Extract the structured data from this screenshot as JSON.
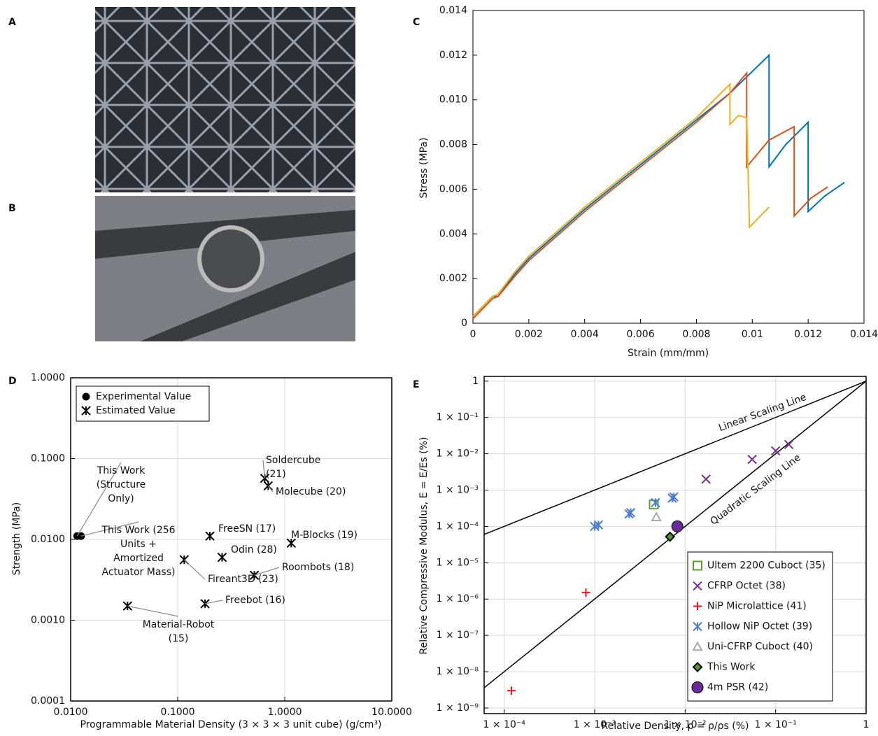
{
  "photos": [
    {
      "label": "A"
    },
    {
      "label": "B"
    }
  ],
  "chart_data": [
    {
      "type": "line",
      "label": "C",
      "xlabel": "Strain (mm/mm)",
      "ylabel": "Stress (MPa)",
      "xlim": [
        0,
        0.014
      ],
      "ylim": [
        0,
        0.014
      ],
      "xticks": [
        0,
        0.002,
        0.004,
        0.006,
        0.008,
        0.01,
        0.012,
        0.014
      ],
      "yticks": [
        0,
        0.002,
        0.004,
        0.006,
        0.008,
        {
          "value": 0.01,
          "label": "0.010"
        },
        0.012,
        0.014
      ],
      "grid": false,
      "series": [
        {
          "color": "#0072bd",
          "x": [
            0,
            0.0007,
            0.0009,
            0.0015,
            0.002,
            0.004,
            0.006,
            0.008,
            0.0092,
            0.0106,
            0.0106,
            0.0112,
            0.012,
            0.012,
            0.0126,
            0.0133
          ],
          "values": [
            0.0003,
            0.0012,
            0.0012,
            0.0022,
            0.0029,
            0.0051,
            0.0071,
            0.0091,
            0.0103,
            0.012,
            0.007,
            0.008,
            0.009,
            0.005,
            0.0057,
            0.0063
          ]
        },
        {
          "color": "#d95319",
          "x": [
            0,
            0.0007,
            0.0009,
            0.0015,
            0.002,
            0.004,
            0.006,
            0.008,
            0.0092,
            0.0098,
            0.0098,
            0.0106,
            0.0115,
            0.0115,
            0.0121,
            0.0127
          ],
          "values": [
            0.0002,
            0.0011,
            0.0012,
            0.0021,
            0.0028,
            0.005,
            0.007,
            0.009,
            0.0103,
            0.0112,
            0.007,
            0.0082,
            0.0088,
            0.0048,
            0.0056,
            0.0061
          ]
        },
        {
          "color": "#edb120",
          "x": [
            0,
            0.0007,
            0.0009,
            0.0015,
            0.002,
            0.004,
            0.006,
            0.008,
            0.0092,
            0.0092,
            0.0095,
            0.0098,
            0.0099,
            0.0106
          ],
          "values": [
            0.0003,
            0.0012,
            0.0013,
            0.0023,
            0.003,
            0.0052,
            0.0072,
            0.0092,
            0.0107,
            0.0089,
            0.0093,
            0.0092,
            0.0043,
            0.0052
          ]
        }
      ]
    },
    {
      "type": "scatter",
      "label": "D",
      "xlabel": "Programmable Material Density (3 × 3 × 3 unit cube) (g/cm³)",
      "ylabel": "Strength (MPa)",
      "xscale": "log",
      "yscale": "log",
      "xlim": [
        0.01,
        10
      ],
      "ylim": [
        0.0001,
        1
      ],
      "xticks": [
        {
          "value": 0.01,
          "label": "0.0100"
        },
        {
          "value": 0.1,
          "label": "0.1000"
        },
        {
          "value": 1,
          "label": "1.0000"
        },
        {
          "value": 10,
          "label": "10.0000"
        }
      ],
      "yticks": [
        0.0001,
        {
          "value": 0.001,
          "label": "0.0010"
        },
        {
          "value": 0.01,
          "label": "0.0100"
        },
        {
          "value": 0.1,
          "label": "0.1000"
        },
        {
          "value": 1,
          "label": "1.0000"
        }
      ],
      "grid": true,
      "legend": "upper left",
      "series": [
        {
          "name": "Experimental Value",
          "color": "#000000",
          "marker": "circle",
          "x": [
            0.0115,
            0.0125
          ],
          "values": [
            0.011,
            0.011
          ]
        },
        {
          "name": "Estimated Value",
          "color": "#000000",
          "marker": "asterisk",
          "x": [
            0.65,
            0.7,
            0.2,
            0.26,
            1.15,
            0.115,
            0.52,
            0.18,
            0.034
          ],
          "values": [
            0.057,
            0.046,
            0.011,
            0.006,
            0.009,
            0.0056,
            0.0036,
            0.0016,
            0.0015
          ]
        }
      ],
      "annotations": [
        {
          "lines": [
            "Soldercube",
            "(21)"
          ]
        },
        {
          "lines": [
            "Molecube (20)"
          ]
        },
        {
          "lines": [
            "FreeSN (17)"
          ]
        },
        {
          "lines": [
            "Odin (28)"
          ]
        },
        {
          "lines": [
            "M-Blocks (19)"
          ]
        },
        {
          "lines": [
            "Fireant3D (23)"
          ]
        },
        {
          "lines": [
            "Roombots (18)"
          ]
        },
        {
          "lines": [
            "Freebot (16)"
          ]
        },
        {
          "lines": [
            "Material-Robot",
            "(15)"
          ]
        },
        {
          "lines": [
            "This Work",
            "(Structure",
            "Only)"
          ]
        },
        {
          "lines": [
            "This Work (256",
            "Units +",
            "Amortized",
            "Actuator Mass)"
          ]
        }
      ]
    },
    {
      "type": "scatter",
      "label": "E",
      "xlabel": "Relative Density,   ρ = ρ/ρs (%)",
      "ylabel": "Relative Compressive Modulus, E = E/Es (%)",
      "xscale": "log",
      "yscale": "log",
      "xlim": [
        6e-05,
        1
      ],
      "ylim": [
        7e-10,
        1.35
      ],
      "xticks": [
        {
          "value": 0.0001,
          "label": "1 × 10⁻⁴"
        },
        {
          "value": 0.001,
          "label": "1 × 10⁻³"
        },
        {
          "value": 0.01,
          "label": "1 × 10⁻²"
        },
        {
          "value": 0.1,
          "label": "1 × 10⁻¹"
        },
        1
      ],
      "yticks": [
        {
          "value": 1e-09,
          "label": "1 × 10⁻⁹"
        },
        {
          "value": 1e-08,
          "label": "1 × 10⁻⁸"
        },
        {
          "value": 1e-07,
          "label": "1 × 10⁻⁷"
        },
        {
          "value": 1e-06,
          "label": "1 × 10⁻⁶"
        },
        {
          "value": 1e-05,
          "label": "1 × 10⁻⁵"
        },
        {
          "value": 0.0001,
          "label": "1 × 10⁻⁴"
        },
        {
          "value": 0.001,
          "label": "1 × 10⁻³"
        },
        {
          "value": 0.01,
          "label": "1 × 10⁻²"
        },
        {
          "value": 0.1,
          "label": "1 × 10⁻¹"
        },
        1
      ],
      "grid": true,
      "legend": "lower right",
      "series": [
        {
          "name": "Ultem 2200 Cuboct (35)",
          "color": "#5aa02c",
          "marker": "square",
          "x": [
            0.0045
          ],
          "values": [
            0.0004
          ]
        },
        {
          "name": "CFRP Octet (38)",
          "color": "#7e2f8e",
          "marker": "x",
          "x": [
            0.017,
            0.055,
            0.1,
            0.14
          ],
          "values": [
            0.002,
            0.007,
            0.012,
            0.018
          ]
        },
        {
          "name": "NiP Microlattice (41)",
          "color": "#e8141c",
          "marker": "plus",
          "x": [
            0.00012,
            0.0008
          ],
          "values": [
            3e-09,
            1.5e-06
          ]
        },
        {
          "name": "Hollow NiP Octet (39)",
          "color": "#4a7fd0",
          "marker": "asterisk",
          "x": [
            0.001,
            0.0011,
            0.0024,
            0.0025,
            0.0047,
            0.0072,
            0.0075
          ],
          "values": [
            0.0001,
            0.00011,
            0.00022,
            0.00024,
            0.00045,
            0.0006,
            0.00065
          ]
        },
        {
          "name": "Uni-CFRP Cuboct (40)",
          "color": "#aaaaaa",
          "marker": "triangle",
          "x": [
            0.0048
          ],
          "values": [
            0.00018
          ]
        },
        {
          "name": "This Work",
          "color": "#4e9a32",
          "marker": "diamond",
          "x": [
            0.0068
          ],
          "values": [
            5.2e-05
          ]
        },
        {
          "name": "4m PSR (42)",
          "color": "#6a2c9a",
          "marker": "circle",
          "x": [
            0.0082
          ],
          "values": [
            0.0001
          ]
        }
      ],
      "lines": [
        {
          "x": [
            6e-05,
            1
          ],
          "values": [
            6e-05,
            1
          ]
        },
        {
          "x": [
            6e-05,
            1
          ],
          "values": [
            3.6e-09,
            1
          ]
        }
      ],
      "annotations": [
        {
          "lines": [
            "Linear Scaling Line"
          ]
        },
        {
          "lines": [
            "Quadratic Scaling Line"
          ]
        }
      ]
    }
  ]
}
